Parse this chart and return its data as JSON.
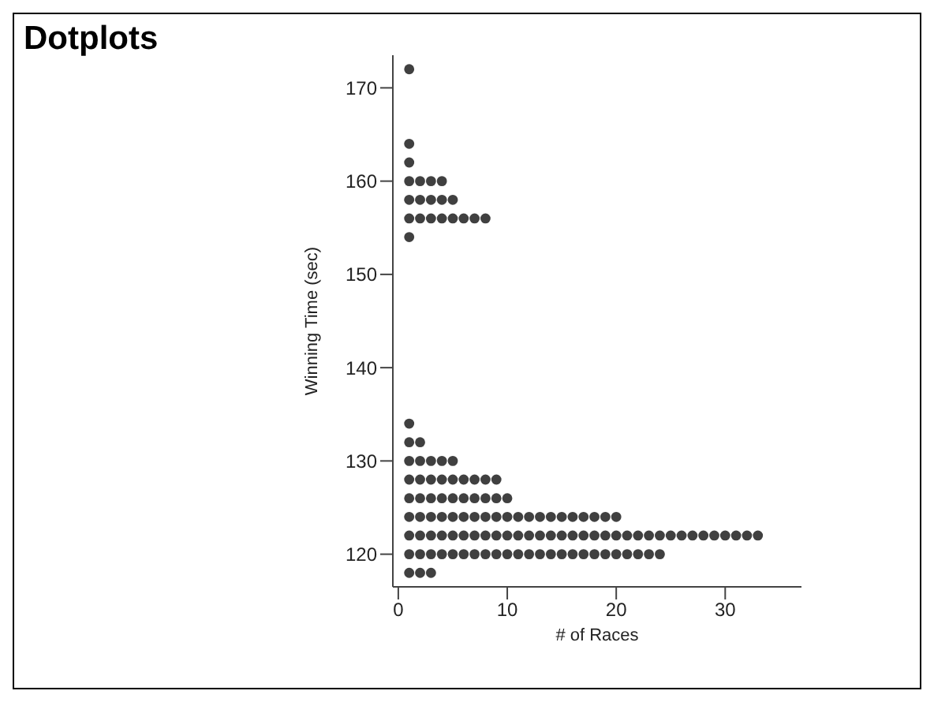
{
  "chart_data": {
    "type": "scatter",
    "title": "Dotplots",
    "xlabel": "# of Races",
    "ylabel": "Winning Time (sec)",
    "xlim": [
      -0.5,
      37
    ],
    "xticks": [
      0,
      10,
      20,
      30
    ],
    "ylim": [
      116.5,
      173.5
    ],
    "yticks": [
      120,
      130,
      140,
      150,
      160,
      170
    ],
    "grid": false,
    "legend": false,
    "marker": "circle",
    "series": [
      {
        "color": "#404040",
        "x": [
          1,
          2,
          3
        ],
        "values": [
          118,
          118,
          118
        ]
      },
      {
        "color": "#404040",
        "x": [
          1,
          2,
          3,
          4,
          5,
          6,
          7,
          8,
          9,
          10,
          11,
          12,
          13,
          14,
          15,
          16,
          17,
          18,
          19,
          20,
          21,
          22,
          23,
          24
        ],
        "values": [
          120,
          120,
          120,
          120,
          120,
          120,
          120,
          120,
          120,
          120,
          120,
          120,
          120,
          120,
          120,
          120,
          120,
          120,
          120,
          120,
          120,
          120,
          120,
          120
        ]
      },
      {
        "color": "#404040",
        "x": [
          1,
          2,
          3,
          4,
          5,
          6,
          7,
          8,
          9,
          10,
          11,
          12,
          13,
          14,
          15,
          16,
          17,
          18,
          19,
          20,
          21,
          22,
          23,
          24,
          25,
          26,
          27,
          28,
          29,
          30,
          31,
          32,
          33
        ],
        "values": [
          122,
          122,
          122,
          122,
          122,
          122,
          122,
          122,
          122,
          122,
          122,
          122,
          122,
          122,
          122,
          122,
          122,
          122,
          122,
          122,
          122,
          122,
          122,
          122,
          122,
          122,
          122,
          122,
          122,
          122,
          122,
          122,
          122
        ]
      },
      {
        "color": "#404040",
        "x": [
          1,
          2,
          3,
          4,
          5,
          6,
          7,
          8,
          9,
          10,
          11,
          12,
          13,
          14,
          15,
          16,
          17,
          18,
          19,
          20
        ],
        "values": [
          124,
          124,
          124,
          124,
          124,
          124,
          124,
          124,
          124,
          124,
          124,
          124,
          124,
          124,
          124,
          124,
          124,
          124,
          124,
          124
        ]
      },
      {
        "color": "#404040",
        "x": [
          1,
          2,
          3,
          4,
          5,
          6,
          7,
          8,
          9,
          10
        ],
        "values": [
          126,
          126,
          126,
          126,
          126,
          126,
          126,
          126,
          126,
          126
        ]
      },
      {
        "color": "#404040",
        "x": [
          1,
          2,
          3,
          4,
          5,
          6,
          7,
          8,
          9
        ],
        "values": [
          128,
          128,
          128,
          128,
          128,
          128,
          128,
          128,
          128
        ]
      },
      {
        "color": "#404040",
        "x": [
          1,
          2,
          3,
          4,
          5
        ],
        "values": [
          130,
          130,
          130,
          130,
          130
        ]
      },
      {
        "color": "#404040",
        "x": [
          1,
          2
        ],
        "values": [
          132,
          132
        ]
      },
      {
        "color": "#404040",
        "x": [
          1
        ],
        "values": [
          134
        ]
      },
      {
        "color": "#404040",
        "x": [
          1
        ],
        "values": [
          154
        ]
      },
      {
        "color": "#404040",
        "x": [
          1,
          2,
          3,
          4,
          5,
          6,
          7,
          8
        ],
        "values": [
          156,
          156,
          156,
          156,
          156,
          156,
          156,
          156
        ]
      },
      {
        "color": "#404040",
        "x": [
          1,
          2,
          3,
          4,
          5
        ],
        "values": [
          158,
          158,
          158,
          158,
          158
        ]
      },
      {
        "color": "#404040",
        "x": [
          1,
          2,
          3,
          4
        ],
        "values": [
          160,
          160,
          160,
          160
        ]
      },
      {
        "color": "#404040",
        "x": [
          1
        ],
        "values": [
          162
        ]
      },
      {
        "color": "#404040",
        "x": [
          1
        ],
        "values": [
          164
        ]
      },
      {
        "color": "#404040",
        "x": [
          1
        ],
        "values": [
          172
        ]
      }
    ]
  }
}
